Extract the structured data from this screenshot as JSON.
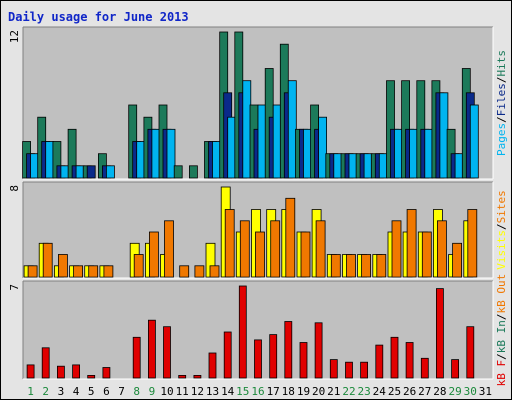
{
  "chart_data": {
    "type": "bar",
    "title": "Daily usage for June 2013",
    "categories": [
      "1",
      "2",
      "3",
      "4",
      "5",
      "6",
      "7",
      "8",
      "9",
      "10",
      "11",
      "12",
      "13",
      "14",
      "15",
      "16",
      "17",
      "18",
      "19",
      "20",
      "21",
      "22",
      "23",
      "24",
      "25",
      "26",
      "27",
      "28",
      "29",
      "30",
      "31"
    ],
    "weekend_days": [
      "1",
      "2",
      "8",
      "9",
      "15",
      "16",
      "22",
      "23",
      "29",
      "30"
    ],
    "colors": {
      "hits": "#1c7a5a",
      "files": "#0a2a8a",
      "pages": "#00b4f0",
      "visits": "#ffff00",
      "sites": "#f07800",
      "kb_out": "#f07800",
      "kb_in": "#1c7a5a",
      "kb_f": "#e00000",
      "weekday_label": "#000000",
      "weekend_label": "#1c8a3c"
    },
    "panels": [
      {
        "id": "hits_files_pages",
        "ymax_label": "12",
        "ymax": 12,
        "legend": [
          "Pages",
          "Files",
          "Hits"
        ],
        "series": [
          {
            "name": "Hits",
            "values": [
              3,
              5,
              3,
              4,
              1,
              2,
              0,
              6,
              5,
              6,
              1,
              1,
              3,
              12,
              12,
              6,
              9,
              11,
              4,
              6,
              2,
              2,
              2,
              2,
              8,
              8,
              8,
              8,
              4,
              9,
              0
            ]
          },
          {
            "name": "Files",
            "values": [
              2,
              3,
              1,
              1,
              1,
              1,
              0,
              3,
              4,
              4,
              0,
              0,
              3,
              7,
              7,
              4,
              5,
              7,
              4,
              4,
              2,
              2,
              2,
              2,
              4,
              4,
              4,
              7,
              2,
              7,
              0
            ]
          },
          {
            "name": "Pages",
            "values": [
              2,
              3,
              1,
              1,
              0,
              1,
              0,
              3,
              4,
              4,
              0,
              0,
              3,
              5,
              8,
              6,
              6,
              8,
              4,
              5,
              2,
              2,
              2,
              2,
              4,
              4,
              4,
              7,
              2,
              6,
              0
            ]
          }
        ]
      },
      {
        "id": "visits_sites",
        "ymax_label": "8",
        "ymax": 8,
        "legend": [
          "Visits",
          "Sites"
        ],
        "series": [
          {
            "name": "Visits",
            "values": [
              1,
              3,
              1,
              1,
              1,
              1,
              0,
              3,
              3,
              2,
              0,
              0,
              3,
              8,
              4,
              6,
              6,
              6,
              4,
              6,
              2,
              2,
              2,
              2,
              4,
              4,
              4,
              6,
              2,
              5,
              0
            ]
          },
          {
            "name": "Sites",
            "values": [
              1,
              3,
              2,
              1,
              1,
              1,
              0,
              2,
              4,
              5,
              1,
              1,
              1,
              6,
              5,
              4,
              5,
              7,
              4,
              5,
              2,
              2,
              2,
              2,
              5,
              6,
              4,
              5,
              3,
              6,
              0
            ]
          }
        ]
      },
      {
        "id": "kbytes",
        "ymax_label": "7",
        "ymax": 7,
        "legend": [
          "kB F",
          "kB In",
          "kB Out"
        ],
        "series": [
          {
            "name": "kB F",
            "values": [
              1.0,
              2.3,
              0.9,
              1.0,
              0.2,
              0.8,
              0,
              3.1,
              4.4,
              3.9,
              0.2,
              0.2,
              1.9,
              3.5,
              7.0,
              2.9,
              3.3,
              4.3,
              2.7,
              4.2,
              1.4,
              1.2,
              1.2,
              2.5,
              3.1,
              2.7,
              1.5,
              6.8,
              1.4,
              3.9,
              0
            ]
          }
        ]
      }
    ]
  }
}
